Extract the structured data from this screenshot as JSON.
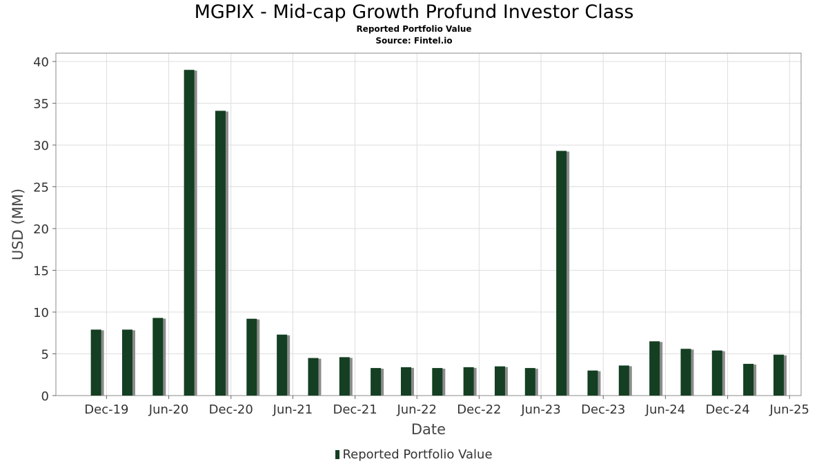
{
  "chart_data": {
    "type": "bar",
    "title": "MGPIX - Mid-cap Growth Profund Investor Class",
    "subtitle": "Reported Portfolio Value",
    "source": "Source: Fintel.io",
    "xlabel": "Date",
    "ylabel": "USD (MM)",
    "ylim": [
      0,
      41
    ],
    "yticks": [
      0,
      5,
      10,
      15,
      20,
      25,
      30,
      35,
      40
    ],
    "xlim": [
      "2019-07-05",
      "2025-07-05"
    ],
    "xticks": [
      {
        "label": "Dec-19",
        "date": "2019-12-01"
      },
      {
        "label": "Jun-20",
        "date": "2020-06-01"
      },
      {
        "label": "Dec-20",
        "date": "2020-12-01"
      },
      {
        "label": "Jun-21",
        "date": "2021-06-01"
      },
      {
        "label": "Dec-21",
        "date": "2021-12-01"
      },
      {
        "label": "Jun-22",
        "date": "2022-06-01"
      },
      {
        "label": "Dec-22",
        "date": "2022-12-01"
      },
      {
        "label": "Jun-23",
        "date": "2023-06-01"
      },
      {
        "label": "Dec-23",
        "date": "2023-12-01"
      },
      {
        "label": "Jun-24",
        "date": "2024-06-01"
      },
      {
        "label": "Dec-24",
        "date": "2024-12-01"
      },
      {
        "label": "Jun-25",
        "date": "2025-06-01"
      }
    ],
    "grid": true,
    "legend_position": "bottom-center",
    "series": [
      {
        "name": "Reported Portfolio Value",
        "color": "#143f22",
        "points": [
          {
            "date": "2019-10-31",
            "value": 7.9
          },
          {
            "date": "2020-01-31",
            "value": 7.9
          },
          {
            "date": "2020-04-30",
            "value": 9.3
          },
          {
            "date": "2020-07-31",
            "value": 39.0
          },
          {
            "date": "2020-10-31",
            "value": 34.1
          },
          {
            "date": "2021-01-31",
            "value": 9.2
          },
          {
            "date": "2021-04-30",
            "value": 7.3
          },
          {
            "date": "2021-07-31",
            "value": 4.5
          },
          {
            "date": "2021-10-31",
            "value": 4.6
          },
          {
            "date": "2022-01-31",
            "value": 3.3
          },
          {
            "date": "2022-04-30",
            "value": 3.4
          },
          {
            "date": "2022-07-31",
            "value": 3.3
          },
          {
            "date": "2022-10-31",
            "value": 3.4
          },
          {
            "date": "2023-01-31",
            "value": 3.5
          },
          {
            "date": "2023-04-30",
            "value": 3.3
          },
          {
            "date": "2023-07-31",
            "value": 29.3
          },
          {
            "date": "2023-10-31",
            "value": 3.0
          },
          {
            "date": "2024-01-31",
            "value": 3.6
          },
          {
            "date": "2024-04-30",
            "value": 6.5
          },
          {
            "date": "2024-07-31",
            "value": 5.6
          },
          {
            "date": "2024-10-31",
            "value": 5.4
          },
          {
            "date": "2025-01-31",
            "value": 3.8
          },
          {
            "date": "2025-04-30",
            "value": 4.9
          }
        ]
      }
    ]
  }
}
